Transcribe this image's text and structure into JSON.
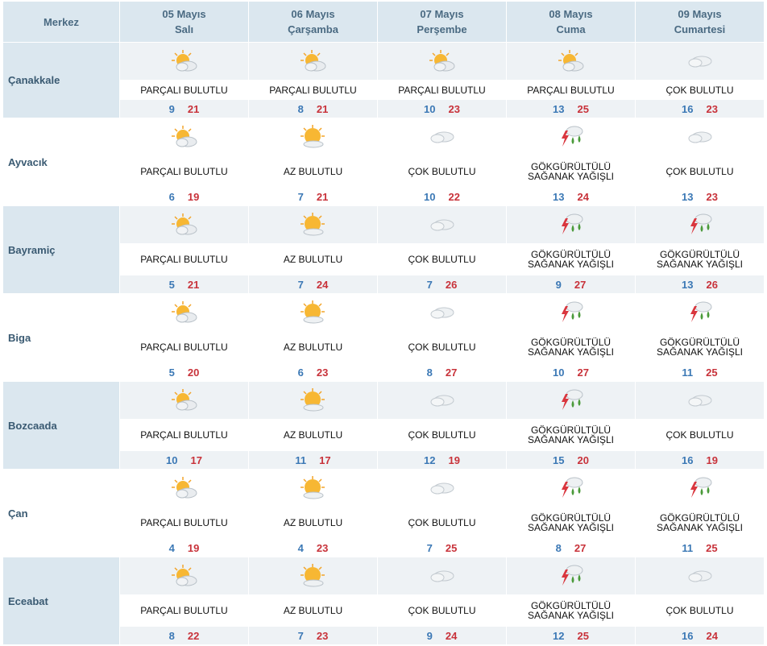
{
  "header": {
    "region_label": "Merkez",
    "days": [
      {
        "date": "05 Mayıs",
        "weekday": "Salı"
      },
      {
        "date": "06 Mayıs",
        "weekday": "Çarşamba"
      },
      {
        "date": "07 Mayıs",
        "weekday": "Perşembe"
      },
      {
        "date": "08 Mayıs",
        "weekday": "Cuma"
      },
      {
        "date": "09 Mayıs",
        "weekday": "Cumartesi"
      }
    ]
  },
  "rows": [
    {
      "name": "Çanakkale",
      "days": [
        {
          "icon": "partly-cloudy-icon",
          "cond": "PARÇALI BULUTLU",
          "min": "9",
          "max": "21"
        },
        {
          "icon": "partly-cloudy-icon",
          "cond": "PARÇALI BULUTLU",
          "min": "8",
          "max": "21"
        },
        {
          "icon": "partly-cloudy-icon",
          "cond": "PARÇALI BULUTLU",
          "min": "10",
          "max": "23"
        },
        {
          "icon": "partly-cloudy-icon",
          "cond": "PARÇALI BULUTLU",
          "min": "13",
          "max": "25"
        },
        {
          "icon": "cloudy-icon",
          "cond": "ÇOK BULUTLU",
          "min": "16",
          "max": "23"
        }
      ]
    },
    {
      "name": "Ayvacık",
      "days": [
        {
          "icon": "partly-cloudy-icon",
          "cond": "PARÇALI BULUTLU",
          "min": "6",
          "max": "19"
        },
        {
          "icon": "mostly-sunny-icon",
          "cond": "AZ BULUTLU",
          "min": "7",
          "max": "21"
        },
        {
          "icon": "cloudy-icon",
          "cond": "ÇOK BULUTLU",
          "min": "10",
          "max": "22"
        },
        {
          "icon": "thunderstorm-icon",
          "cond": "GÖKGÜRÜLTÜLÜ SAĞANAK YAĞIŞLI",
          "min": "13",
          "max": "24"
        },
        {
          "icon": "cloudy-icon",
          "cond": "ÇOK BULUTLU",
          "min": "13",
          "max": "23"
        }
      ]
    },
    {
      "name": "Bayramiç",
      "days": [
        {
          "icon": "partly-cloudy-icon",
          "cond": "PARÇALI BULUTLU",
          "min": "5",
          "max": "21"
        },
        {
          "icon": "mostly-sunny-icon",
          "cond": "AZ BULUTLU",
          "min": "7",
          "max": "24"
        },
        {
          "icon": "cloudy-icon",
          "cond": "ÇOK BULUTLU",
          "min": "7",
          "max": "26"
        },
        {
          "icon": "thunderstorm-icon",
          "cond": "GÖKGÜRÜLTÜLÜ SAĞANAK YAĞIŞLI",
          "min": "9",
          "max": "27"
        },
        {
          "icon": "thunderstorm-icon",
          "cond": "GÖKGÜRÜLTÜLÜ SAĞANAK YAĞIŞLI",
          "min": "13",
          "max": "26"
        }
      ]
    },
    {
      "name": "Biga",
      "days": [
        {
          "icon": "partly-cloudy-icon",
          "cond": "PARÇALI BULUTLU",
          "min": "5",
          "max": "20"
        },
        {
          "icon": "mostly-sunny-icon",
          "cond": "AZ BULUTLU",
          "min": "6",
          "max": "23"
        },
        {
          "icon": "cloudy-icon",
          "cond": "ÇOK BULUTLU",
          "min": "8",
          "max": "27"
        },
        {
          "icon": "thunderstorm-icon",
          "cond": "GÖKGÜRÜLTÜLÜ SAĞANAK YAĞIŞLI",
          "min": "10",
          "max": "27"
        },
        {
          "icon": "thunderstorm-icon",
          "cond": "GÖKGÜRÜLTÜLÜ SAĞANAK YAĞIŞLI",
          "min": "11",
          "max": "25"
        }
      ]
    },
    {
      "name": "Bozcaada",
      "days": [
        {
          "icon": "partly-cloudy-icon",
          "cond": "PARÇALI BULUTLU",
          "min": "10",
          "max": "17"
        },
        {
          "icon": "mostly-sunny-icon",
          "cond": "AZ BULUTLU",
          "min": "11",
          "max": "17"
        },
        {
          "icon": "cloudy-icon",
          "cond": "ÇOK BULUTLU",
          "min": "12",
          "max": "19"
        },
        {
          "icon": "thunderstorm-icon",
          "cond": "GÖKGÜRÜLTÜLÜ SAĞANAK YAĞIŞLI",
          "min": "15",
          "max": "20"
        },
        {
          "icon": "cloudy-icon",
          "cond": "ÇOK BULUTLU",
          "min": "16",
          "max": "19"
        }
      ]
    },
    {
      "name": "Çan",
      "days": [
        {
          "icon": "partly-cloudy-icon",
          "cond": "PARÇALI BULUTLU",
          "min": "4",
          "max": "19"
        },
        {
          "icon": "mostly-sunny-icon",
          "cond": "AZ BULUTLU",
          "min": "4",
          "max": "23"
        },
        {
          "icon": "cloudy-icon",
          "cond": "ÇOK BULUTLU",
          "min": "7",
          "max": "25"
        },
        {
          "icon": "thunderstorm-icon",
          "cond": "GÖKGÜRÜLTÜLÜ SAĞANAK YAĞIŞLI",
          "min": "8",
          "max": "27"
        },
        {
          "icon": "thunderstorm-icon",
          "cond": "GÖKGÜRÜLTÜLÜ SAĞANAK YAĞIŞLI",
          "min": "11",
          "max": "25"
        }
      ]
    },
    {
      "name": "Eceabat",
      "days": [
        {
          "icon": "partly-cloudy-icon",
          "cond": "PARÇALI BULUTLU",
          "min": "8",
          "max": "22"
        },
        {
          "icon": "mostly-sunny-icon",
          "cond": "AZ BULUTLU",
          "min": "7",
          "max": "23"
        },
        {
          "icon": "cloudy-icon",
          "cond": "ÇOK BULUTLU",
          "min": "9",
          "max": "24"
        },
        {
          "icon": "thunderstorm-icon",
          "cond": "GÖKGÜRÜLTÜLÜ SAĞANAK YAĞIŞLI",
          "min": "12",
          "max": "25"
        },
        {
          "icon": "cloudy-icon",
          "cond": "ÇOK BULUTLU",
          "min": "16",
          "max": "24"
        }
      ]
    }
  ],
  "colors": {
    "min_temp": "#3b78b5",
    "max_temp": "#c8323a",
    "header_bg": "#dbe7ef"
  }
}
